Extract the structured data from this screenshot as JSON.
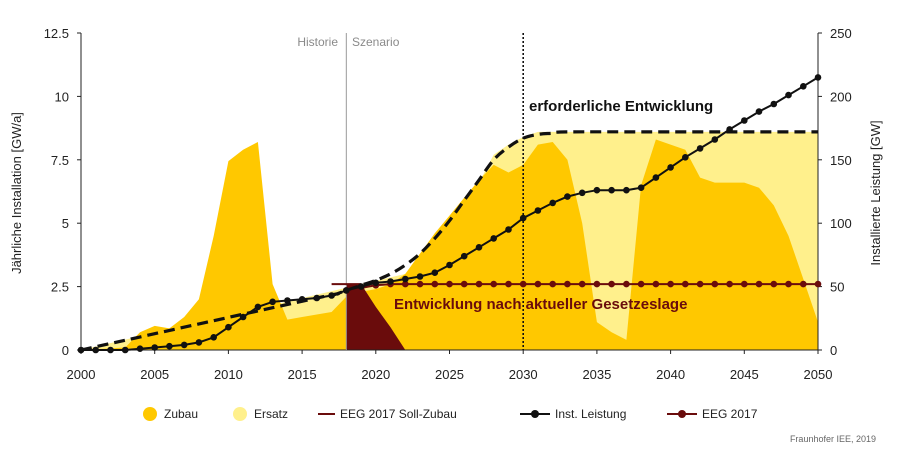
{
  "chart_data": {
    "type": "area",
    "ylabel_left": "Jährliche Installation [GW/a]",
    "ylabel_right": "Installierte Leistung [GW]",
    "xlim": [
      2000,
      2050
    ],
    "ylim_left": [
      0,
      12.5
    ],
    "ylim_right": [
      0,
      250
    ],
    "x_ticks": [
      "2000",
      "2005",
      "2010",
      "2015",
      "2020",
      "2025",
      "2030",
      "2035",
      "2040",
      "2045",
      "2050"
    ],
    "y_left_ticks": [
      "0",
      "2.5",
      "5",
      "7.5",
      "10",
      "12.5"
    ],
    "y_right_ticks": [
      "0",
      "50",
      "100",
      "150",
      "200",
      "250"
    ],
    "y_left_tick_values": [
      0,
      2.5,
      5,
      7.5,
      10,
      12.5
    ],
    "y_right_tick_values": [
      0,
      50,
      100,
      150,
      200,
      250
    ],
    "period_labels": {
      "history": "Historie",
      "scenario": "Szenario"
    },
    "period_divider_x": 2018,
    "marker_line_x": 2030,
    "annotations": {
      "required": "erforderliche Entwicklung",
      "current_law": "Entwicklung nach aktueller Gesetzeslage"
    },
    "legend": {
      "zubau": "Zubau",
      "ersatz": "Ersatz",
      "eeg_soll": "EEG 2017 Soll-Zubau",
      "inst": "Inst. Leistung",
      "eeg2017": "EEG 2017"
    },
    "credit": "Fraunhofer IEE, 2019",
    "colors": {
      "zubau": "#ffc800",
      "ersatz": "#fff08c",
      "eeg_area": "#6a0c0c",
      "inst": "#111111",
      "eeg2017": "#6a0c0c",
      "divider": "#9a9a9a"
    },
    "series": [
      {
        "name": "Ersatz",
        "axis": "left",
        "x": [
          2000,
          2022,
          2024,
          2026,
          2027,
          2028,
          2029,
          2030,
          2031,
          2032,
          2040,
          2050
        ],
        "values": [
          0,
          3.0,
          4.0,
          5.5,
          6.6,
          7.7,
          8.1,
          8.4,
          8.6,
          8.6,
          8.6,
          8.6
        ]
      },
      {
        "name": "Zubau",
        "axis": "left",
        "x": [
          2000,
          2003,
          2004,
          2005,
          2006,
          2007,
          2008,
          2009,
          2010,
          2011,
          2012,
          2013,
          2014,
          2015,
          2016,
          2017,
          2018,
          2019,
          2020,
          2021,
          2022,
          2023,
          2024,
          2025,
          2026,
          2027,
          2028,
          2029,
          2030,
          2031,
          2032,
          2033,
          2034,
          2035,
          2036,
          2037,
          2038,
          2039,
          2040,
          2041,
          2042,
          2043,
          2044,
          2045,
          2046,
          2047,
          2048,
          2049,
          2050
        ],
        "values": [
          0,
          0.1,
          0.7,
          0.95,
          0.85,
          1.3,
          2.0,
          4.5,
          7.45,
          7.9,
          8.2,
          2.6,
          1.2,
          1.3,
          1.4,
          1.5,
          2.1,
          2.3,
          2.4,
          2.6,
          3.0,
          3.8,
          4.6,
          5.3,
          6.0,
          6.7,
          7.3,
          7.0,
          7.3,
          8.1,
          8.2,
          7.5,
          5.0,
          1.1,
          0.7,
          0.4,
          6.5,
          8.3,
          8.1,
          7.9,
          6.8,
          6.6,
          6.6,
          6.6,
          6.4,
          5.7,
          4.5,
          2.8,
          1.1
        ]
      },
      {
        "name": "EEG 2017 Soll-Zubau",
        "axis": "left",
        "x": [
          2018,
          2019,
          2020,
          2021,
          2022
        ],
        "values": [
          2.6,
          2.6,
          1.7,
          0.9,
          0
        ]
      },
      {
        "name": "erforderliche Entwicklung",
        "axis": "right",
        "x": [
          2000,
          2016,
          2017,
          2018,
          2019,
          2020,
          2021,
          2022,
          2023,
          2024,
          2025,
          2026,
          2027,
          2028,
          2029,
          2030,
          2031,
          2032,
          2033,
          2040,
          2050
        ],
        "values": [
          0,
          41,
          43,
          47,
          51,
          55,
          60,
          67,
          76,
          88,
          102,
          118,
          134,
          150,
          160,
          167,
          170,
          171,
          172,
          172,
          172
        ]
      },
      {
        "name": "Inst. Leistung",
        "axis": "right",
        "x": [
          2000,
          2001,
          2002,
          2003,
          2004,
          2005,
          2006,
          2007,
          2008,
          2009,
          2010,
          2011,
          2012,
          2013,
          2014,
          2015,
          2016,
          2017,
          2018,
          2019,
          2020,
          2021,
          2022,
          2023,
          2024,
          2025,
          2026,
          2027,
          2028,
          2029,
          2030,
          2031,
          2032,
          2033,
          2034,
          2035,
          2036,
          2037,
          2038,
          2039,
          2040,
          2041,
          2042,
          2043,
          2044,
          2045,
          2046,
          2047,
          2048,
          2049,
          2050
        ],
        "values": [
          0,
          0,
          0,
          0,
          1,
          2,
          3,
          4,
          6,
          10,
          18,
          26,
          34,
          38,
          39,
          40,
          41,
          43,
          47,
          50,
          53,
          54,
          56,
          58,
          61,
          67,
          74,
          81,
          88,
          95,
          104,
          110,
          116,
          121,
          124,
          126,
          126,
          126,
          128,
          136,
          144,
          152,
          159,
          166,
          174,
          181,
          188,
          194,
          201,
          208,
          215
        ]
      },
      {
        "name": "EEG 2017",
        "axis": "right",
        "x": [
          2018,
          2019,
          2020,
          2021,
          2022,
          2023,
          2024,
          2025,
          2026,
          2027,
          2028,
          2029,
          2030,
          2031,
          2032,
          2033,
          2034,
          2035,
          2036,
          2037,
          2038,
          2039,
          2040,
          2041,
          2042,
          2043,
          2044,
          2045,
          2046,
          2047,
          2048,
          2049,
          2050
        ],
        "values": [
          47,
          49,
          51,
          52,
          52,
          52,
          52,
          52,
          52,
          52,
          52,
          52,
          52,
          52,
          52,
          52,
          52,
          52,
          52,
          52,
          52,
          52,
          52,
          52,
          52,
          52,
          52,
          52,
          52,
          52,
          52,
          52,
          52
        ]
      }
    ]
  }
}
